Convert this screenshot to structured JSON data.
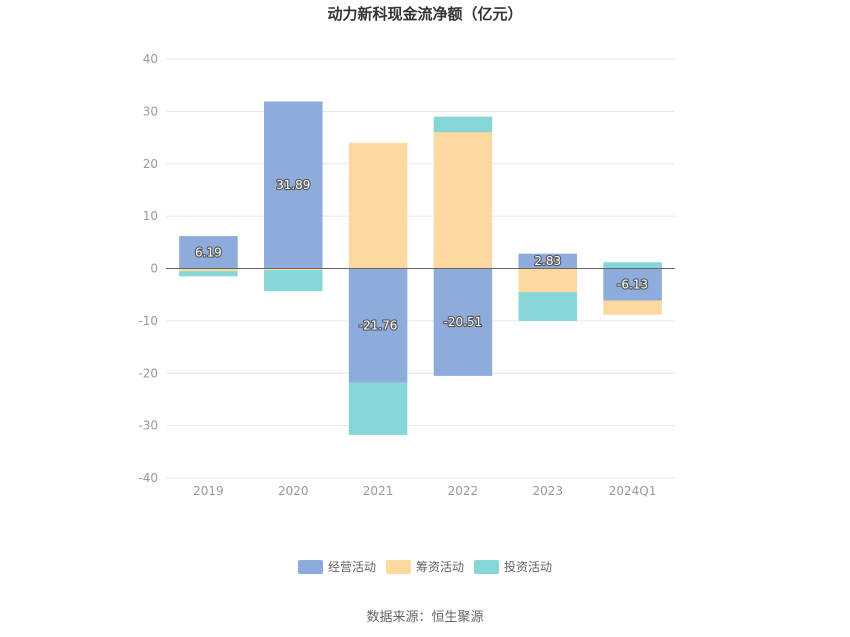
{
  "chart_data": {
    "type": "bar",
    "stacked": true,
    "title": "动力新科现金流净额（亿元）",
    "categories": [
      "2019",
      "2020",
      "2021",
      "2022",
      "2023",
      "2024Q1"
    ],
    "ylim": [
      -40,
      40
    ],
    "yticks": [
      40,
      30,
      20,
      10,
      0,
      -10,
      -20,
      -30,
      -40
    ],
    "grid": true,
    "legend_position": "bottom",
    "series": [
      {
        "name": "经营活动",
        "color": "#8eacdb",
        "values": [
          6.19,
          31.89,
          -21.76,
          -20.51,
          2.83,
          -6.13
        ],
        "labels": [
          "6.19",
          "31.89",
          "-21.76",
          "-20.51",
          "2.83",
          "-6.13"
        ]
      },
      {
        "name": "筹资活动",
        "color": "#fdd9a0",
        "values": [
          -0.5,
          -0.3,
          24.0,
          26.0,
          -4.5,
          -2.7
        ]
      },
      {
        "name": "投资活动",
        "color": "#86d6d8",
        "values": [
          -1.0,
          -4.0,
          -10.0,
          3.0,
          -5.5,
          1.2
        ]
      }
    ],
    "source": "数据来源：恒生聚源"
  }
}
